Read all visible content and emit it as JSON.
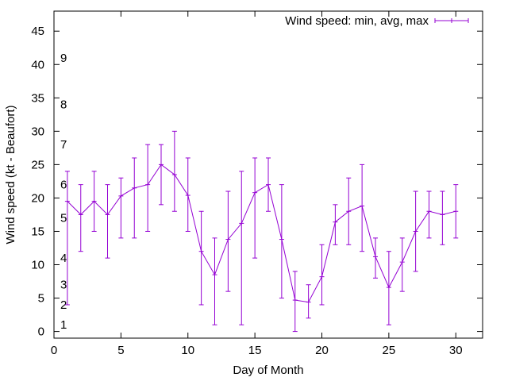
{
  "chart_data": {
    "type": "line",
    "title": "",
    "xlabel": "Day of Month",
    "ylabel": "Wind speed (kt - Beaufort)",
    "xlim": [
      0,
      32
    ],
    "ylim": [
      -1,
      48
    ],
    "xticks": [
      0,
      5,
      10,
      15,
      20,
      25,
      30
    ],
    "yticks": [
      0,
      5,
      10,
      15,
      20,
      25,
      30,
      35,
      40,
      45
    ],
    "grid": false,
    "legend_position": "top-right",
    "series": [
      {
        "name": "Wind speed: min, avg, max",
        "color": "#9400d3",
        "style": "line with error bars",
        "x": [
          1,
          2,
          3,
          4,
          5,
          6,
          7,
          8,
          9,
          10,
          11,
          12,
          13,
          14,
          15,
          16,
          17,
          18,
          19,
          20,
          21,
          22,
          23,
          24,
          25,
          26,
          27,
          28,
          29,
          30
        ],
        "avg": [
          19.5,
          17.5,
          19.5,
          17.5,
          20.3,
          21.5,
          22,
          25,
          23.5,
          20.4,
          12,
          8.5,
          13.8,
          16.2,
          20.8,
          22,
          13.8,
          4.7,
          4.4,
          8.2,
          16.4,
          18,
          18.8,
          11.2,
          6.6,
          10.4,
          15,
          18,
          17.5,
          18
        ],
        "min": [
          4,
          12,
          15,
          11,
          14,
          14,
          15,
          19,
          18,
          15,
          4,
          1,
          6,
          1,
          11,
          18,
          5,
          0,
          2,
          4,
          13,
          13,
          12,
          8,
          1,
          6,
          9,
          14,
          13,
          14
        ],
        "max": [
          24,
          22,
          24,
          22,
          23,
          26,
          28,
          28,
          30,
          26,
          18,
          14,
          21,
          24,
          26,
          26,
          22,
          9,
          7,
          13,
          19,
          23,
          25,
          14,
          12,
          14,
          21,
          21,
          21,
          22
        ]
      }
    ],
    "annotations": [
      {
        "text": "1",
        "y": 1
      },
      {
        "text": "2",
        "y": 4
      },
      {
        "text": "3",
        "y": 7
      },
      {
        "text": "4",
        "y": 11
      },
      {
        "text": "5",
        "y": 17
      },
      {
        "text": "6",
        "y": 22
      },
      {
        "text": "7",
        "y": 28
      },
      {
        "text": "8",
        "y": 34
      },
      {
        "text": "9",
        "y": 41
      }
    ]
  }
}
